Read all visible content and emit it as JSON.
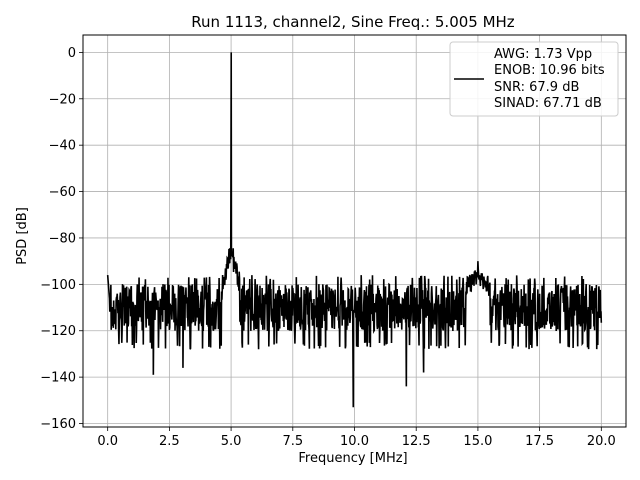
{
  "chart_data": {
    "type": "line",
    "title": "Run 1113, channel2, Sine Freq.: 5.005 MHz",
    "xlabel": "Frequency [MHz]",
    "ylabel": "PSD [dB]",
    "xlim": [
      -1.0,
      21.0
    ],
    "ylim": [
      -161.5,
      7.5
    ],
    "xticks": [
      0.0,
      2.5,
      5.0,
      7.5,
      10.0,
      12.5,
      15.0,
      17.5,
      20.0
    ],
    "xtick_labels": [
      "0.0",
      "2.5",
      "5.0",
      "7.5",
      "10.0",
      "12.5",
      "15.0",
      "17.5",
      "20.0"
    ],
    "yticks": [
      0,
      -20,
      -40,
      -60,
      -80,
      -100,
      -120,
      -140,
      -160
    ],
    "ytick_labels": [
      "0",
      "−20",
      "−40",
      "−60",
      "−80",
      "−100",
      "−120",
      "−140",
      "−160"
    ],
    "grid": true,
    "legend": {
      "placement": "top-right",
      "lines": [
        "AWG: 1.73 Vpp",
        "ENOB: 10.96 bits",
        "SNR: 67.9 dB",
        "SINAD: 67.71 dB"
      ]
    },
    "series": [
      {
        "color": "#000000",
        "noise_floor_db": -110,
        "noise_range_db": [
          -125,
          -98
        ],
        "peaks": [
          {
            "x": 5.005,
            "y": 0
          },
          {
            "x": 15.0,
            "y": -90
          }
        ],
        "notable_dips": [
          {
            "x": 1.85,
            "y": -139
          },
          {
            "x": 3.05,
            "y": -136
          },
          {
            "x": 9.95,
            "y": -153
          },
          {
            "x": 12.1,
            "y": -144
          },
          {
            "x": 12.8,
            "y": -138
          }
        ]
      }
    ]
  }
}
